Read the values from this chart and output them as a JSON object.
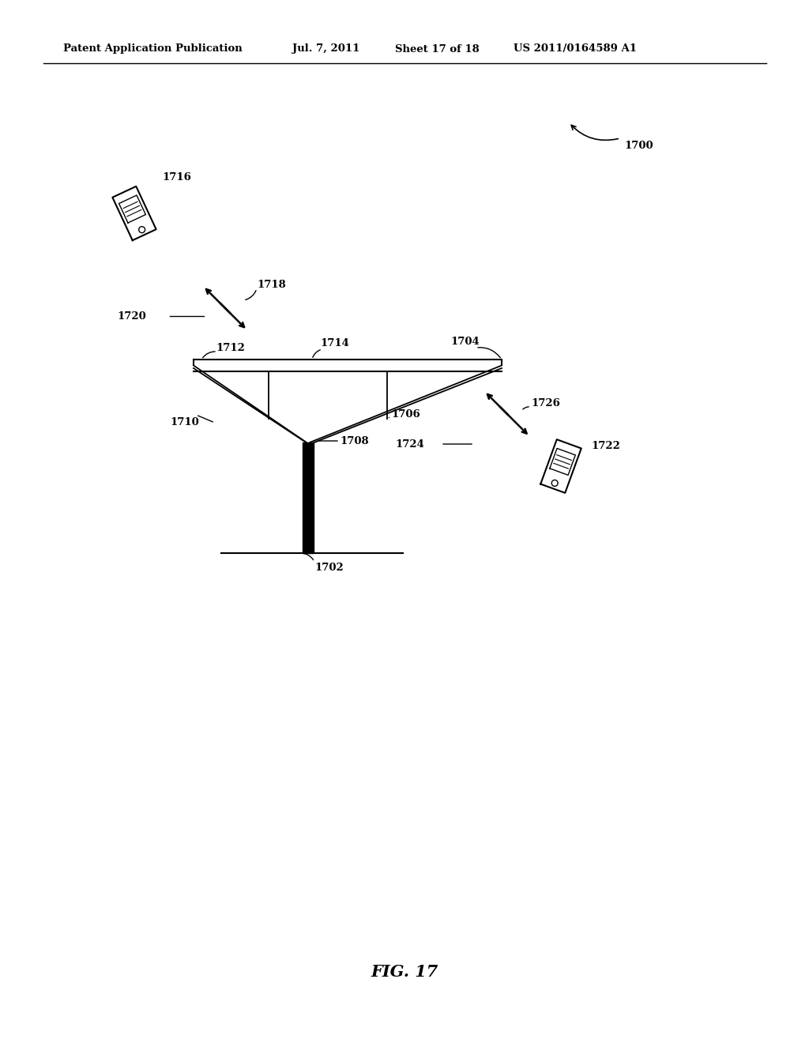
{
  "background_color": "#ffffff",
  "header_text": "Patent Application Publication",
  "header_date": "Jul. 7, 2011",
  "header_sheet": "Sheet 17 of 18",
  "header_patent": "US 2011/0164589 A1",
  "figure_label": "FIG. 17",
  "fig_width": 10.24,
  "fig_height": 13.2,
  "dpi": 100
}
